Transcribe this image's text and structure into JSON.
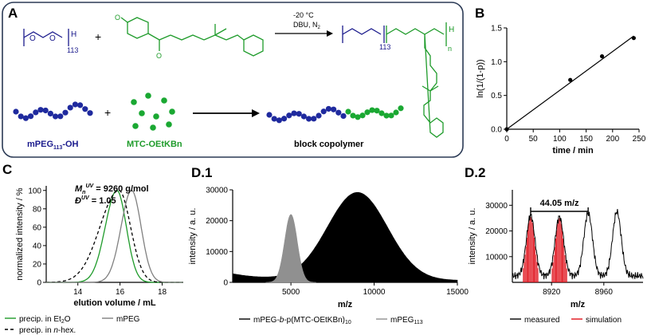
{
  "panel_labels": {
    "A": "A",
    "B": "B",
    "C": "C",
    "D1": "D.1",
    "D2": "D.2"
  },
  "colors": {
    "navy": "#1a1a8c",
    "green": "#1e9b2a",
    "blue_bead": "#1f2a9e",
    "green_bead": "#1aa832",
    "red": "#e0101a",
    "gray": "#808080",
    "frame": "#2b3a55"
  },
  "schemeA": {
    "reaction_condition_1": "-20 °C",
    "reaction_condition_2": "DBU, N",
    "reaction_condition_2_sub": "2",
    "peg_repeat": "113",
    "peg_end": "H",
    "product_repeat_peg": "113",
    "product_repeat_n": "n",
    "product_end": "H",
    "plus_1": "+",
    "plus_2": "+",
    "label_mpeg": "mPEG",
    "label_mpeg_sub": "113",
    "label_mpeg_suffix": "-OH",
    "label_mtc": "MTC-OEtKBn",
    "label_block": "block copolymer"
  },
  "chart_data": [
    {
      "id": "B",
      "type": "scatter",
      "xlabel": "time / min",
      "ylabel": "ln(1/(1-p))",
      "xlim": [
        0,
        250
      ],
      "ylim": [
        0,
        1.5
      ],
      "xticks": [
        "0",
        "50",
        "100",
        "150",
        "200",
        "250"
      ],
      "yticks": [
        "0.0",
        "0.5",
        "1.0",
        "1.5"
      ],
      "points": [
        {
          "x": 0,
          "y": 0
        },
        {
          "x": 120,
          "y": 0.73
        },
        {
          "x": 180,
          "y": 1.08
        },
        {
          "x": 240,
          "y": 1.35
        }
      ],
      "fit_line": [
        {
          "x": 0,
          "y": 0
        },
        {
          "x": 240,
          "y": 1.38
        }
      ]
    },
    {
      "id": "C",
      "type": "line",
      "xlabel": "elution volume / mL",
      "ylabel": "normalized intensity / %",
      "xlim": [
        12.5,
        19
      ],
      "ylim": [
        0,
        105
      ],
      "xticks": [
        "14",
        "16",
        "18"
      ],
      "yticks": [
        "0",
        "20",
        "40",
        "60",
        "80",
        "100"
      ],
      "annotation_mn_prefix": "M",
      "annotation_mn_sub": "n",
      "annotation_mn_sup": "UV",
      "annotation_mn_value": " = 9260 g/mol",
      "annotation_d_prefix": "Đ",
      "annotation_d_sup": "UV",
      "annotation_d_value": " = 1.05",
      "series": [
        {
          "name": "precip. in Et2O",
          "color": "#1e9b2a",
          "dash": "",
          "peak": 15.85,
          "sigma_left": 0.55,
          "sigma_right": 0.45
        },
        {
          "name": "precip. in n-hex.",
          "color": "#000000",
          "dash": "4,3",
          "peak": 15.95,
          "sigma_left": 0.9,
          "sigma_right": 0.55
        },
        {
          "name": "mPEG",
          "color": "#808080",
          "dash": "",
          "peak": 16.55,
          "sigma_left": 0.5,
          "sigma_right": 0.45
        }
      ],
      "legend": [
        {
          "label_pre": "precip. in Et",
          "label_sub": "2",
          "label_post": "O"
        },
        {
          "label_pre": "precip. in ",
          "label_ital": "n",
          "label_post": "-hex."
        },
        {
          "label_pre": "mPEG"
        }
      ]
    },
    {
      "id": "D1",
      "type": "area",
      "xlabel": "m/z",
      "ylabel": "intensity / a. u.",
      "xlim": [
        1500,
        15000
      ],
      "ylim": [
        0,
        30000
      ],
      "xticks": [
        "5000",
        "10000",
        "15000"
      ],
      "yticks": [
        "0",
        "10000",
        "20000",
        "30000"
      ],
      "series": [
        {
          "name": "mPEG-b-p(MTC-OEtKBn)10",
          "color": "#000000",
          "peak": 9000,
          "height": 28500,
          "sigma": 1800,
          "baseline": 2200
        },
        {
          "name": "mPEG113",
          "color": "#909090",
          "peak": 5000,
          "height": 22000,
          "sigma": 380,
          "baseline": 0
        }
      ],
      "legend": [
        {
          "pre": "mPEG-",
          "ital": "b",
          "mid": "-p(MTC-OEtKBn)",
          "sub": "10"
        },
        {
          "pre": "mPEG",
          "sub": "113"
        }
      ]
    },
    {
      "id": "D2",
      "type": "line",
      "xlabel": "m/z",
      "ylabel": "intensity / a. u.",
      "xlim": [
        8890,
        8990
      ],
      "ylim": [
        0,
        36000
      ],
      "xticks": [
        "8920",
        "8960"
      ],
      "yticks": [
        "10000",
        "20000",
        "30000"
      ],
      "annotation": "44.05 m/z",
      "bracket": [
        8904,
        8948
      ],
      "peaks": [
        {
          "x": 8904,
          "y": 26000
        },
        {
          "x": 8926,
          "y": 25500
        },
        {
          "x": 8948,
          "y": 27000
        },
        {
          "x": 8970,
          "y": 27500
        }
      ],
      "legend": [
        {
          "label": "measured",
          "color": "#000000"
        },
        {
          "label": "simulation",
          "color": "#e0101a"
        }
      ]
    }
  ]
}
